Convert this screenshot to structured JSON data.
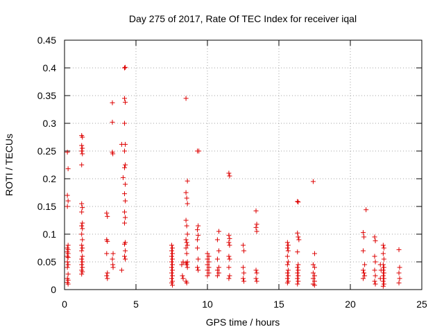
{
  "chart_data": {
    "type": "scatter",
    "title": "Day 275 of 2017, Rate Of TEC Index for receiver iqal",
    "xlabel": "GPS time / hours",
    "ylabel": "ROTI / TECUs",
    "xlim": [
      0,
      25
    ],
    "ylim": [
      0,
      0.45
    ],
    "xticks": [
      0,
      5,
      10,
      15,
      20,
      25
    ],
    "xtick_labels": [
      "0",
      "5",
      "10",
      "15",
      "20",
      "25"
    ],
    "yticks": [
      0,
      0.05,
      0.1,
      0.15,
      0.2,
      0.25,
      0.3,
      0.35,
      0.4,
      0.45
    ],
    "ytick_labels": [
      "0",
      "0.05",
      "0.1",
      "0.15",
      "0.2",
      "0.25",
      "0.3",
      "0.35",
      "0.4",
      "0.45"
    ],
    "grid": true,
    "legend": "none",
    "marker": "+",
    "marker_color": "#dd0000",
    "series": [
      {
        "points": [
          [
            0.2,
            0.248
          ],
          [
            0.25,
            0.218
          ],
          [
            0.2,
            0.17
          ],
          [
            0.25,
            0.16
          ],
          [
            0.2,
            0.15
          ],
          [
            0.25,
            0.08
          ],
          [
            0.2,
            0.075
          ],
          [
            0.25,
            0.072
          ],
          [
            0.2,
            0.068
          ],
          [
            0.25,
            0.065
          ],
          [
            0.2,
            0.06
          ],
          [
            0.25,
            0.058
          ],
          [
            0.2,
            0.05
          ],
          [
            0.25,
            0.045
          ],
          [
            0.2,
            0.04
          ],
          [
            0.25,
            0.028
          ],
          [
            0.2,
            0.02
          ],
          [
            0.25,
            0.017
          ],
          [
            0.2,
            0.013
          ],
          [
            0.25,
            0.01
          ],
          [
            1.2,
            0.278
          ],
          [
            1.25,
            0.275
          ],
          [
            1.2,
            0.26
          ],
          [
            1.25,
            0.255
          ],
          [
            1.2,
            0.25
          ],
          [
            1.25,
            0.245
          ],
          [
            1.2,
            0.225
          ],
          [
            1.2,
            0.155
          ],
          [
            1.25,
            0.148
          ],
          [
            1.2,
            0.14
          ],
          [
            1.25,
            0.12
          ],
          [
            1.2,
            0.115
          ],
          [
            1.25,
            0.11
          ],
          [
            1.2,
            0.1
          ],
          [
            1.25,
            0.09
          ],
          [
            1.2,
            0.08
          ],
          [
            1.25,
            0.075
          ],
          [
            1.2,
            0.07
          ],
          [
            1.25,
            0.06
          ],
          [
            1.2,
            0.055
          ],
          [
            1.25,
            0.05
          ],
          [
            1.2,
            0.045
          ],
          [
            1.25,
            0.04
          ],
          [
            1.2,
            0.035
          ],
          [
            1.25,
            0.032
          ],
          [
            1.2,
            0.028
          ],
          [
            2.95,
            0.138
          ],
          [
            3.0,
            0.132
          ],
          [
            2.95,
            0.09
          ],
          [
            3.0,
            0.087
          ],
          [
            2.95,
            0.065
          ],
          [
            3.0,
            0.03
          ],
          [
            2.95,
            0.025
          ],
          [
            3.0,
            0.02
          ],
          [
            3.35,
            0.337
          ],
          [
            3.35,
            0.302
          ],
          [
            3.35,
            0.248
          ],
          [
            3.38,
            0.245
          ],
          [
            3.4,
            0.065
          ],
          [
            3.35,
            0.055
          ],
          [
            3.38,
            0.045
          ],
          [
            3.4,
            0.04
          ],
          [
            4.0,
            0.262
          ],
          [
            4.2,
            0.4
          ],
          [
            4.25,
            0.401
          ],
          [
            4.2,
            0.345
          ],
          [
            4.25,
            0.338
          ],
          [
            4.2,
            0.3
          ],
          [
            4.25,
            0.262
          ],
          [
            4.2,
            0.25
          ],
          [
            4.25,
            0.225
          ],
          [
            4.2,
            0.22
          ],
          [
            4.1,
            0.202
          ],
          [
            4.25,
            0.19
          ],
          [
            4.2,
            0.173
          ],
          [
            4.25,
            0.16
          ],
          [
            4.2,
            0.14
          ],
          [
            4.25,
            0.13
          ],
          [
            4.2,
            0.12
          ],
          [
            4.25,
            0.085
          ],
          [
            4.2,
            0.082
          ],
          [
            4.25,
            0.07
          ],
          [
            4.2,
            0.06
          ],
          [
            4.25,
            0.055
          ],
          [
            4.0,
            0.035
          ],
          [
            7.5,
            0.08
          ],
          [
            7.55,
            0.075
          ],
          [
            7.5,
            0.07
          ],
          [
            7.55,
            0.065
          ],
          [
            7.5,
            0.06
          ],
          [
            7.55,
            0.055
          ],
          [
            7.5,
            0.05
          ],
          [
            7.55,
            0.045
          ],
          [
            7.5,
            0.04
          ],
          [
            7.55,
            0.035
          ],
          [
            7.5,
            0.03
          ],
          [
            7.55,
            0.025
          ],
          [
            7.5,
            0.02
          ],
          [
            7.55,
            0.015
          ],
          [
            7.5,
            0.012
          ],
          [
            7.55,
            0.008
          ],
          [
            8.5,
            0.345
          ],
          [
            8.6,
            0.196
          ],
          [
            8.5,
            0.175
          ],
          [
            8.55,
            0.165
          ],
          [
            8.6,
            0.155
          ],
          [
            8.5,
            0.125
          ],
          [
            8.55,
            0.115
          ],
          [
            8.6,
            0.1
          ],
          [
            8.5,
            0.09
          ],
          [
            8.55,
            0.085
          ],
          [
            8.6,
            0.08
          ],
          [
            8.5,
            0.075
          ],
          [
            8.55,
            0.065
          ],
          [
            8.6,
            0.05
          ],
          [
            8.5,
            0.048
          ],
          [
            8.55,
            0.045
          ],
          [
            8.6,
            0.04
          ],
          [
            8.3,
            0.05
          ],
          [
            8.2,
            0.045
          ],
          [
            8.25,
            0.025
          ],
          [
            8.3,
            0.02
          ],
          [
            8.5,
            0.015
          ],
          [
            8.55,
            0.012
          ],
          [
            9.3,
            0.25
          ],
          [
            9.4,
            0.25
          ],
          [
            9.35,
            0.115
          ],
          [
            9.3,
            0.108
          ],
          [
            9.35,
            0.098
          ],
          [
            9.3,
            0.09
          ],
          [
            9.3,
            0.075
          ],
          [
            9.35,
            0.055
          ],
          [
            9.3,
            0.04
          ],
          [
            9.35,
            0.035
          ],
          [
            10.0,
            0.065
          ],
          [
            10.1,
            0.06
          ],
          [
            10.0,
            0.055
          ],
          [
            10.1,
            0.05
          ],
          [
            10.0,
            0.045
          ],
          [
            10.1,
            0.04
          ],
          [
            10.0,
            0.035
          ],
          [
            10.1,
            0.03
          ],
          [
            10.0,
            0.025
          ],
          [
            10.8,
            0.105
          ],
          [
            10.7,
            0.09
          ],
          [
            10.8,
            0.07
          ],
          [
            10.7,
            0.055
          ],
          [
            10.8,
            0.04
          ],
          [
            10.7,
            0.035
          ],
          [
            10.8,
            0.03
          ],
          [
            10.7,
            0.025
          ],
          [
            11.5,
            0.21
          ],
          [
            11.55,
            0.205
          ],
          [
            11.5,
            0.098
          ],
          [
            11.55,
            0.092
          ],
          [
            11.5,
            0.085
          ],
          [
            11.55,
            0.08
          ],
          [
            11.5,
            0.06
          ],
          [
            11.55,
            0.055
          ],
          [
            11.5,
            0.04
          ],
          [
            11.55,
            0.025
          ],
          [
            11.5,
            0.02
          ],
          [
            12.5,
            0.08
          ],
          [
            12.55,
            0.07
          ],
          [
            12.5,
            0.04
          ],
          [
            12.55,
            0.03
          ],
          [
            12.5,
            0.02
          ],
          [
            12.55,
            0.015
          ],
          [
            13.4,
            0.142
          ],
          [
            13.45,
            0.118
          ],
          [
            13.4,
            0.112
          ],
          [
            13.45,
            0.105
          ],
          [
            13.4,
            0.035
          ],
          [
            13.45,
            0.03
          ],
          [
            13.4,
            0.02
          ],
          [
            13.45,
            0.015
          ],
          [
            15.6,
            0.085
          ],
          [
            15.65,
            0.08
          ],
          [
            15.6,
            0.075
          ],
          [
            15.65,
            0.07
          ],
          [
            15.6,
            0.06
          ],
          [
            15.65,
            0.05
          ],
          [
            15.6,
            0.045
          ],
          [
            15.65,
            0.035
          ],
          [
            15.6,
            0.03
          ],
          [
            15.65,
            0.025
          ],
          [
            15.6,
            0.02
          ],
          [
            15.65,
            0.015
          ],
          [
            15.6,
            0.012
          ],
          [
            16.3,
            0.159
          ],
          [
            16.35,
            0.158
          ],
          [
            16.3,
            0.102
          ],
          [
            16.35,
            0.095
          ],
          [
            16.4,
            0.09
          ],
          [
            16.3,
            0.068
          ],
          [
            16.35,
            0.045
          ],
          [
            16.3,
            0.04
          ],
          [
            16.35,
            0.035
          ],
          [
            16.3,
            0.03
          ],
          [
            16.35,
            0.025
          ],
          [
            16.3,
            0.02
          ],
          [
            16.35,
            0.015
          ],
          [
            16.3,
            0.01
          ],
          [
            17.4,
            0.195
          ],
          [
            17.5,
            0.065
          ],
          [
            17.4,
            0.045
          ],
          [
            17.5,
            0.04
          ],
          [
            17.4,
            0.03
          ],
          [
            17.5,
            0.025
          ],
          [
            17.4,
            0.02
          ],
          [
            17.5,
            0.015
          ],
          [
            17.4,
            0.01
          ],
          [
            17.5,
            0.008
          ],
          [
            20.9,
            0.103
          ],
          [
            20.95,
            0.095
          ],
          [
            20.9,
            0.07
          ],
          [
            21.0,
            0.045
          ],
          [
            20.9,
            0.035
          ],
          [
            20.95,
            0.03
          ],
          [
            21.0,
            0.025
          ],
          [
            20.9,
            0.02
          ],
          [
            21.1,
            0.144
          ],
          [
            21.7,
            0.095
          ],
          [
            21.75,
            0.088
          ],
          [
            21.7,
            0.06
          ],
          [
            21.75,
            0.05
          ],
          [
            21.7,
            0.035
          ],
          [
            21.75,
            0.025
          ],
          [
            21.7,
            0.015
          ],
          [
            21.75,
            0.01
          ],
          [
            22.1,
            0.045
          ],
          [
            22.15,
            0.035
          ],
          [
            22.1,
            0.02
          ],
          [
            22.3,
            0.08
          ],
          [
            22.35,
            0.075
          ],
          [
            22.3,
            0.065
          ],
          [
            22.35,
            0.055
          ],
          [
            22.3,
            0.045
          ],
          [
            22.35,
            0.04
          ],
          [
            22.3,
            0.035
          ],
          [
            22.35,
            0.03
          ],
          [
            22.3,
            0.025
          ],
          [
            22.35,
            0.02
          ],
          [
            22.3,
            0.015
          ],
          [
            22.35,
            0.01
          ],
          [
            22.3,
            0.006
          ],
          [
            23.4,
            0.072
          ],
          [
            23.45,
            0.04
          ],
          [
            23.4,
            0.03
          ],
          [
            23.45,
            0.02
          ],
          [
            23.4,
            0.012
          ]
        ]
      }
    ]
  }
}
